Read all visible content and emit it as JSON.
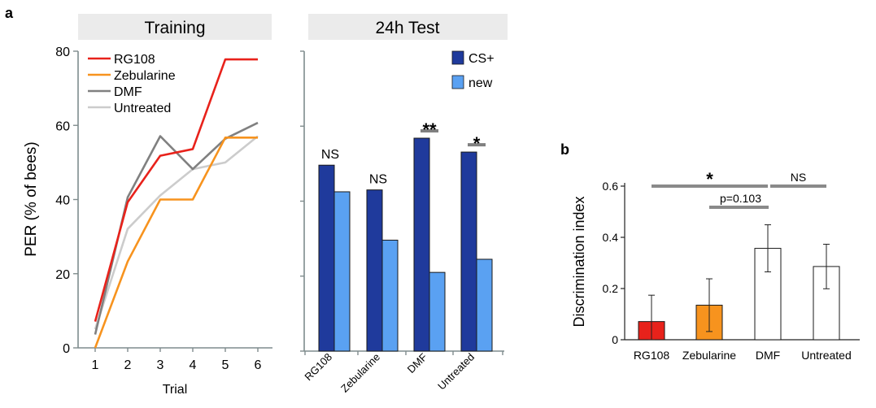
{
  "panels": {
    "a": {
      "letter": "a"
    },
    "b": {
      "letter": "b"
    }
  },
  "chart_data": [
    {
      "id": "training",
      "type": "line",
      "title": "Training",
      "xlabel": "Trial",
      "ylabel": "PER (% of bees)",
      "x": [
        1,
        2,
        3,
        4,
        5,
        6
      ],
      "ylim": [
        0,
        80
      ],
      "yticks": [
        0,
        20,
        40,
        60,
        80
      ],
      "legend": "top-left",
      "series": [
        {
          "name": "RG108",
          "color": "#e8221b",
          "values": [
            7.1,
            39.3,
            51.8,
            53.6,
            77.8,
            77.8
          ]
        },
        {
          "name": "Zebularine",
          "color": "#f7931e",
          "values": [
            0,
            23.3,
            40,
            40,
            56.7,
            56.7
          ]
        },
        {
          "name": "DMF",
          "color": "#808080",
          "values": [
            3.6,
            40.6,
            57.1,
            48.2,
            56.4,
            60.7
          ]
        },
        {
          "name": "Untreated",
          "color": "#cccccc",
          "values": [
            5.0,
            32.1,
            41.1,
            48.2,
            50.0,
            57.1
          ]
        }
      ]
    },
    {
      "id": "test24h",
      "type": "bar",
      "title": "24h Test",
      "ylim": [
        0,
        80
      ],
      "categories": [
        "RG108",
        "Zebularine",
        "DMF",
        "Untreated"
      ],
      "legend": "top-right",
      "series": [
        {
          "name": "CS+",
          "color": "#1f3a9c",
          "values": [
            49.6,
            43.0,
            56.8,
            53.1
          ]
        },
        {
          "name": "new",
          "color": "#5aa1f2",
          "values": [
            42.5,
            29.6,
            21.0,
            24.5
          ]
        }
      ],
      "annotations": [
        "NS",
        "NS",
        "**",
        "*"
      ]
    },
    {
      "id": "discrimination",
      "type": "bar",
      "ylabel": "Discrimination index",
      "ylim": [
        0,
        0.6
      ],
      "yticks": [
        "0",
        "0.2",
        "0.4",
        "0.6"
      ],
      "categories": [
        "RG108",
        "Zebularine",
        "DMF",
        "Untreated"
      ],
      "values": [
        0.071,
        0.135,
        0.357,
        0.286
      ],
      "errors": [
        0.103,
        0.103,
        0.092,
        0.087
      ],
      "colors": [
        "#e8221b",
        "#f7931e",
        "#ffffff",
        "#ffffff"
      ],
      "comparisons": [
        {
          "label": "*",
          "from": 0,
          "to": 2
        },
        {
          "label": "p=0.103",
          "from": 1,
          "to": 2
        },
        {
          "label": "NS",
          "from": 2,
          "to": 3
        }
      ]
    }
  ]
}
